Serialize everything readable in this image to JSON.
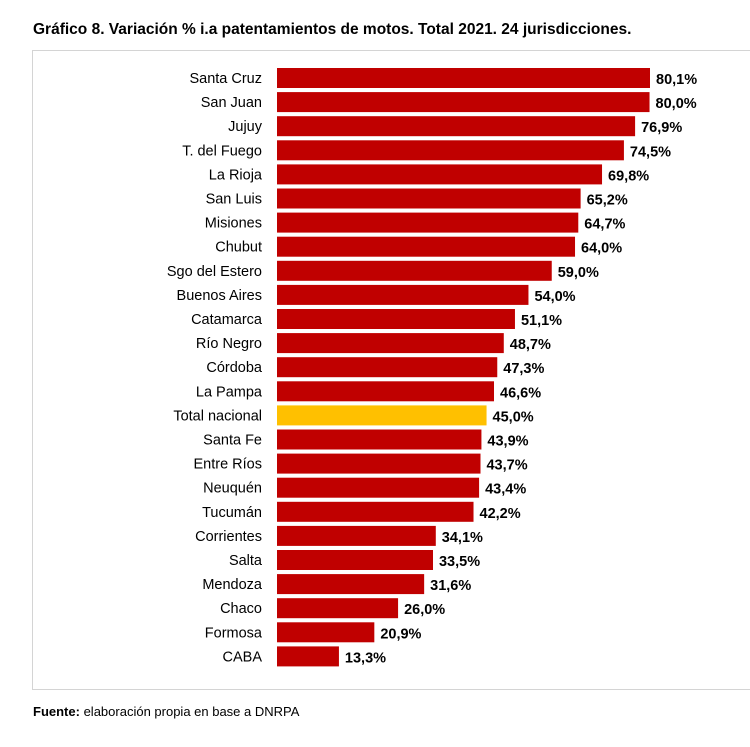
{
  "chart_data": {
    "type": "bar",
    "orientation": "horizontal",
    "title": "Gráfico 8. Variación % i.a patentamientos de motos. Total 2021. 24 jurisdicciones.",
    "xlabel": "",
    "ylabel": "",
    "xlim": [
      0,
      80.1
    ],
    "grid": false,
    "legend": "none",
    "categories": [
      "Santa Cruz",
      "San Juan",
      "Jujuy",
      "T. del Fuego",
      "La Rioja",
      "San Luis",
      "Misiones",
      "Chubut",
      "Sgo del Estero",
      "Buenos Aires",
      "Catamarca",
      "Río Negro",
      "Córdoba",
      "La Pampa",
      "Total nacional",
      "Santa Fe",
      "Entre Ríos",
      "Neuquén",
      "Tucumán",
      "Corrientes",
      "Salta",
      "Mendoza",
      "Chaco",
      "Formosa",
      "CABA"
    ],
    "values": [
      80.1,
      80.0,
      76.9,
      74.5,
      69.8,
      65.2,
      64.7,
      64.0,
      59.0,
      54.0,
      51.1,
      48.7,
      47.3,
      46.6,
      45.0,
      43.9,
      43.7,
      43.4,
      42.2,
      34.1,
      33.5,
      31.6,
      26.0,
      20.9,
      13.3
    ],
    "value_labels": [
      "80,1%",
      "80,0%",
      "76,9%",
      "74,5%",
      "69,8%",
      "65,2%",
      "64,7%",
      "64,0%",
      "59,0%",
      "54,0%",
      "51,1%",
      "48,7%",
      "47,3%",
      "46,6%",
      "45,0%",
      "43,9%",
      "43,7%",
      "43,4%",
      "42,2%",
      "34,1%",
      "33,5%",
      "31,6%",
      "26,0%",
      "20,9%",
      "13,3%"
    ],
    "highlight": "Total nacional",
    "colors": {
      "bar": "#c00000",
      "highlight": "#ffc000"
    }
  },
  "source": {
    "label": "Fuente:",
    "text": "elaboración propia en base a DNRPA"
  }
}
